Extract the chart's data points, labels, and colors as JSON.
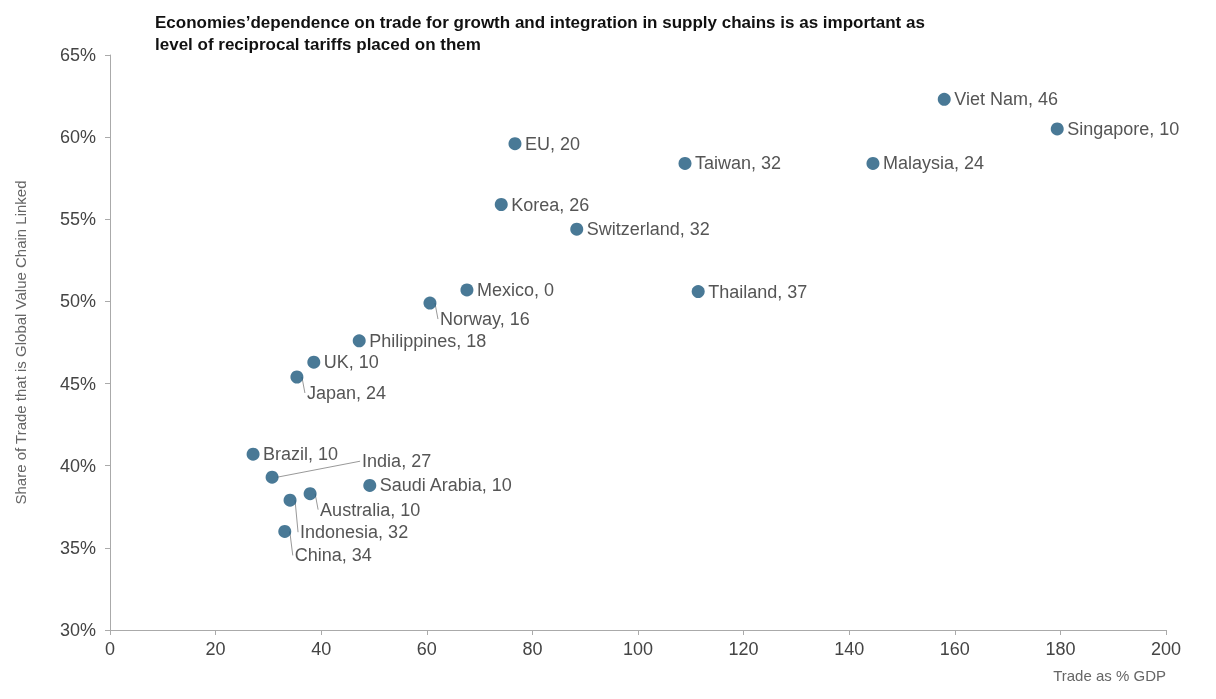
{
  "chart_data": {
    "type": "scatter",
    "title": "Economies’dependence on trade for growth and integration in supply chains is as important as level of reciprocal tariffs placed on them",
    "xlabel": "Trade as % GDP",
    "ylabel": "Share of Trade that is Global Value Chain Linked",
    "x": [
      158,
      179.4,
      76.7,
      108.9,
      144.5,
      74.1,
      88.4,
      67.6,
      60.6,
      111.4,
      47.2,
      38.6,
      35.4,
      27.1,
      30.7,
      49.2,
      37.9,
      34.1,
      33.1
    ],
    "values": [
      62.3,
      60.5,
      59.6,
      58.4,
      58.4,
      55.9,
      54.4,
      50.7,
      49.9,
      50.6,
      47.6,
      46.3,
      45.4,
      40.7,
      39.3,
      38.8,
      38.3,
      37.9,
      36.0
    ],
    "annotations": [
      {
        "text": "Viet Nam, 46",
        "x": 158,
        "y": 62.3
      },
      {
        "text": "Singapore, 10",
        "x": 179.4,
        "y": 60.5
      },
      {
        "text": "EU, 20",
        "x": 76.7,
        "y": 59.6
      },
      {
        "text": "Taiwan, 32",
        "x": 108.9,
        "y": 58.4
      },
      {
        "text": "Malaysia, 24",
        "x": 144.5,
        "y": 58.4
      },
      {
        "text": "Korea, 26",
        "x": 74.1,
        "y": 55.9
      },
      {
        "text": "Switzerland, 32",
        "x": 88.4,
        "y": 54.4
      },
      {
        "text": "Mexico, 0",
        "x": 67.6,
        "y": 50.7
      },
      {
        "text": "Norway, 16",
        "x": 60.6,
        "y": 49.9
      },
      {
        "text": "Thailand, 37",
        "x": 111.4,
        "y": 50.6
      },
      {
        "text": "Philippines, 18",
        "x": 47.2,
        "y": 47.6
      },
      {
        "text": "UK, 10",
        "x": 38.6,
        "y": 46.3
      },
      {
        "text": "Japan, 24",
        "x": 35.4,
        "y": 45.4
      },
      {
        "text": "Brazil, 10",
        "x": 27.1,
        "y": 40.7
      },
      {
        "text": "India, 27",
        "x": 30.7,
        "y": 39.3
      },
      {
        "text": "Saudi Arabia, 10",
        "x": 49.2,
        "y": 38.8
      },
      {
        "text": "Australia, 10",
        "x": 37.9,
        "y": 38.3
      },
      {
        "text": "Indonesia, 32",
        "x": 34.1,
        "y": 37.9
      },
      {
        "text": "China, 34",
        "x": 33.1,
        "y": 36.0
      }
    ],
    "color": "#1b587c",
    "marker": "circle",
    "xlim": [
      0,
      200
    ],
    "xticks": [
      0,
      20,
      40,
      60,
      80,
      100,
      120,
      140,
      160,
      180,
      200
    ],
    "ylim": [
      30,
      65
    ],
    "yticks": [
      {
        "value": 30,
        "label": "30%"
      },
      {
        "value": 35,
        "label": "35%"
      },
      {
        "value": 40,
        "label": "40%"
      },
      {
        "value": 45,
        "label": "45%"
      },
      {
        "value": 50,
        "label": "50%"
      },
      {
        "value": 55,
        "label": "55%"
      },
      {
        "value": 60,
        "label": "60%"
      },
      {
        "value": 65,
        "label": "65%"
      }
    ]
  }
}
